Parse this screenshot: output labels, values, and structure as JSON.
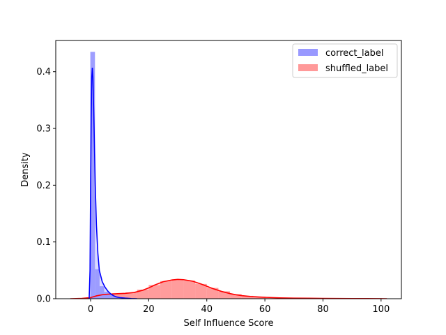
{
  "chart_data": {
    "type": "area",
    "xlabel": "Self Influence Score",
    "ylabel": "Density",
    "xlim": [
      -12,
      107
    ],
    "ylim": [
      0,
      0.455
    ],
    "x_ticks": [
      0,
      20,
      40,
      60,
      80,
      100
    ],
    "y_ticks": [
      0.0,
      0.1,
      0.2,
      0.3,
      0.4
    ],
    "x_tick_labels": [
      "0",
      "20",
      "40",
      "60",
      "80",
      "100"
    ],
    "y_tick_labels": [
      "0.0",
      "0.1",
      "0.2",
      "0.3",
      "0.4"
    ],
    "grid": false,
    "legend_position": "top-right",
    "series": [
      {
        "name": "correct_label",
        "color": "#0000ff",
        "fill_color": "#9999ff",
        "histogram": [
          {
            "x0": -0.1,
            "x1": 1.5,
            "density": 0.435
          },
          {
            "x0": 1.5,
            "x1": 3.1,
            "density": 0.052
          },
          {
            "x0": 3.1,
            "x1": 4.7,
            "density": 0.022
          },
          {
            "x0": 4.7,
            "x1": 6.3,
            "density": 0.012
          },
          {
            "x0": 6.3,
            "x1": 7.9,
            "density": 0.007
          },
          {
            "x0": 7.9,
            "x1": 9.5,
            "density": 0.004
          },
          {
            "x0": 9.5,
            "x1": 11.1,
            "density": 0.002
          }
        ],
        "kde": {
          "x": [
            -0.5,
            -0.2,
            0.0,
            0.2,
            0.4,
            0.6,
            0.8,
            1.2,
            1.6,
            2.0,
            2.5,
            3.0,
            4.0,
            5.0,
            6.0,
            7.0,
            8.0,
            9.0,
            10.0,
            12.0,
            14.0,
            16.0
          ],
          "y": [
            0.0,
            0.05,
            0.2,
            0.32,
            0.39,
            0.407,
            0.39,
            0.3,
            0.2,
            0.13,
            0.08,
            0.05,
            0.03,
            0.02,
            0.013,
            0.008,
            0.005,
            0.003,
            0.002,
            0.001,
            0.0003,
            0.0
          ]
        }
      },
      {
        "name": "shuffled_label",
        "color": "#ff0000",
        "fill_color": "#ff9999",
        "kde": {
          "x": [
            -7,
            -3,
            0,
            2,
            4,
            6,
            8,
            10,
            12,
            15,
            18,
            20,
            22,
            25,
            28,
            30,
            32,
            35,
            38,
            40,
            42,
            45,
            48,
            50,
            52,
            55,
            58,
            60,
            65,
            70,
            75,
            80,
            85,
            90,
            95,
            100,
            102
          ],
          "y": [
            0.0,
            0.0005,
            0.002,
            0.005,
            0.007,
            0.008,
            0.0085,
            0.009,
            0.0095,
            0.011,
            0.015,
            0.019,
            0.024,
            0.03,
            0.033,
            0.034,
            0.0335,
            0.031,
            0.026,
            0.022,
            0.018,
            0.013,
            0.009,
            0.007,
            0.0055,
            0.004,
            0.003,
            0.0025,
            0.0015,
            0.001,
            0.0008,
            0.0006,
            0.0004,
            0.0003,
            0.0002,
            0.0001,
            0.0
          ]
        },
        "histogram": [
          {
            "x0": 0,
            "x1": 4,
            "density": 0.004
          },
          {
            "x0": 4,
            "x1": 8,
            "density": 0.008
          },
          {
            "x0": 8,
            "x1": 12,
            "density": 0.009
          },
          {
            "x0": 12,
            "x1": 16,
            "density": 0.011
          },
          {
            "x0": 16,
            "x1": 20,
            "density": 0.016
          },
          {
            "x0": 20,
            "x1": 24,
            "density": 0.024
          },
          {
            "x0": 24,
            "x1": 28,
            "density": 0.031
          },
          {
            "x0": 28,
            "x1": 32,
            "density": 0.034
          },
          {
            "x0": 32,
            "x1": 36,
            "density": 0.032
          },
          {
            "x0": 36,
            "x1": 40,
            "density": 0.026
          },
          {
            "x0": 40,
            "x1": 44,
            "density": 0.019
          },
          {
            "x0": 44,
            "x1": 48,
            "density": 0.013
          },
          {
            "x0": 48,
            "x1": 52,
            "density": 0.008
          },
          {
            "x0": 52,
            "x1": 56,
            "density": 0.005
          },
          {
            "x0": 56,
            "x1": 60,
            "density": 0.003
          },
          {
            "x0": 60,
            "x1": 70,
            "density": 0.0015
          },
          {
            "x0": 70,
            "x1": 85,
            "density": 0.0007
          },
          {
            "x0": 85,
            "x1": 100,
            "density": 0.0003
          }
        ]
      }
    ]
  }
}
